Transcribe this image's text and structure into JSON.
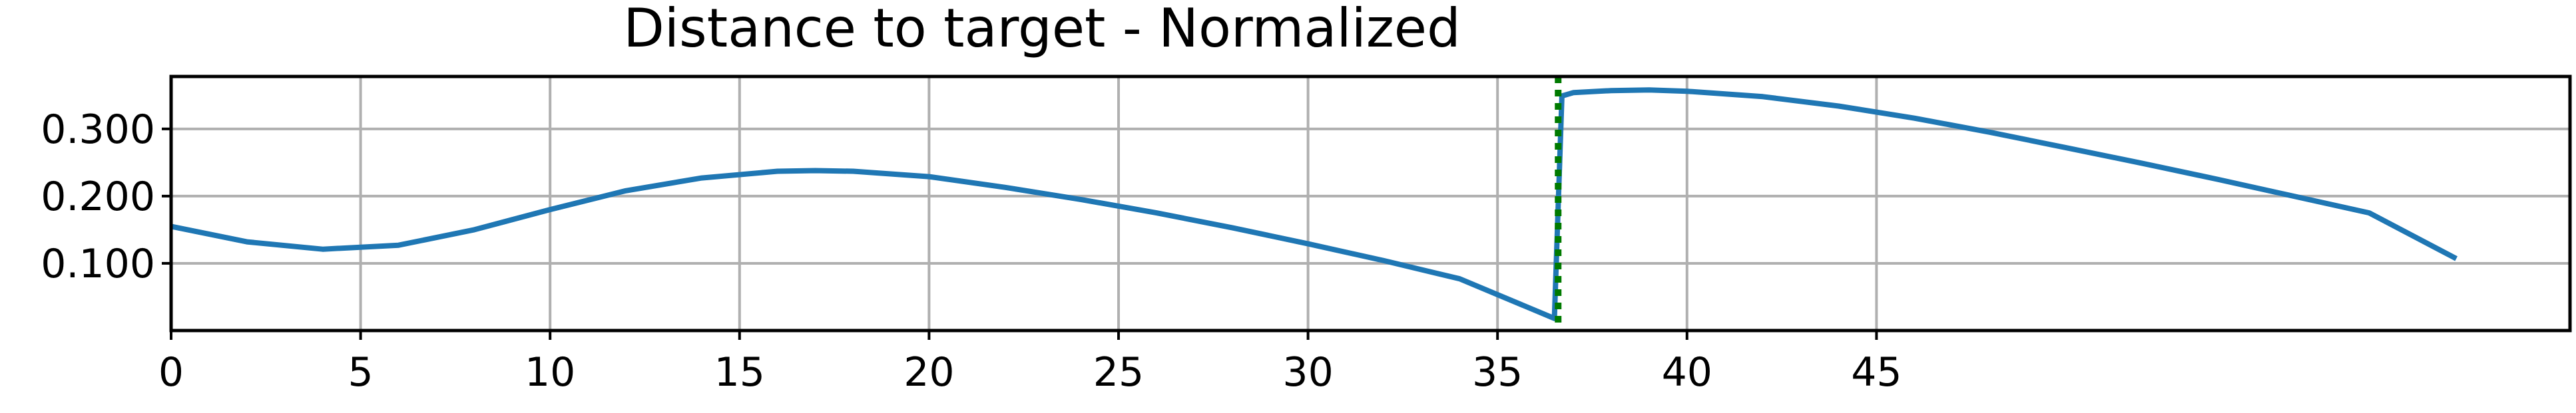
{
  "chart_data": {
    "type": "line",
    "title": "Distance to target - Normalized",
    "xlabel": "",
    "ylabel": "",
    "xlim": [
      0,
      63.3
    ],
    "ylim": [
      0,
      0.378
    ],
    "xticks": [
      0,
      5,
      10,
      15,
      20,
      25,
      30,
      35,
      40,
      45
    ],
    "xtick_labels": [
      "0",
      "5",
      "10",
      "15",
      "20",
      "25",
      "30",
      "35",
      "40",
      "45"
    ],
    "yticks": [
      0.1,
      0.2,
      0.3
    ],
    "ytick_labels": [
      "0.100",
      "0.200",
      "0.300"
    ],
    "grid": true,
    "vline": {
      "x": 36.6,
      "color": "#007a00",
      "style": "dotted"
    },
    "series": [
      {
        "color": "#1f77b4",
        "x": [
          0,
          2,
          4,
          6,
          8,
          10,
          12,
          14,
          16,
          17,
          18,
          20,
          22,
          24,
          26,
          28,
          30,
          32,
          34,
          36.5,
          36.7,
          37,
          38,
          39,
          40,
          42,
          44,
          46,
          48,
          50,
          52,
          54,
          56,
          58,
          60.3
        ],
        "y": [
          0.155,
          0.132,
          0.121,
          0.127,
          0.15,
          0.18,
          0.208,
          0.227,
          0.237,
          0.238,
          0.237,
          0.229,
          0.213,
          0.195,
          0.175,
          0.153,
          0.129,
          0.104,
          0.077,
          0.018,
          0.349,
          0.354,
          0.357,
          0.358,
          0.356,
          0.348,
          0.334,
          0.316,
          0.295,
          0.272,
          0.249,
          0.225,
          0.2,
          0.175,
          0.107
        ]
      }
    ]
  }
}
